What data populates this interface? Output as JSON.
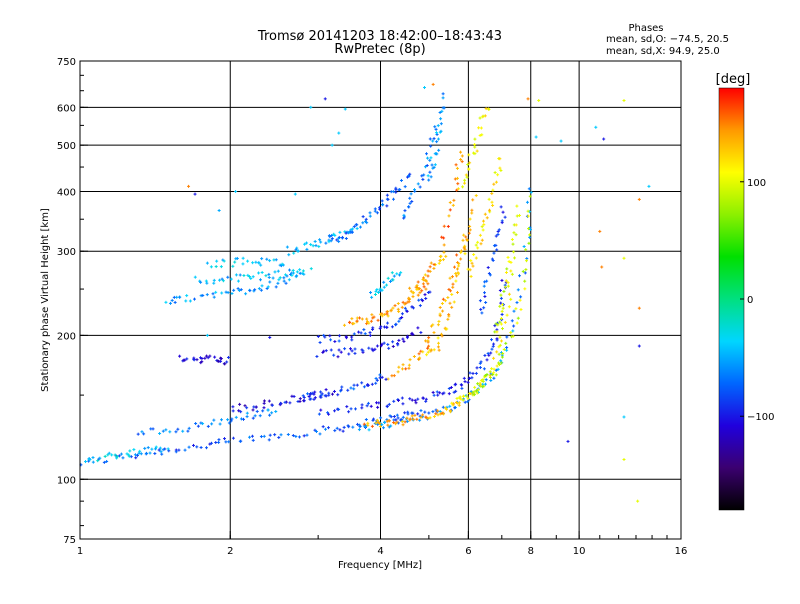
{
  "chart_data": {
    "type": "scatter",
    "title_line1": "Tromsø 20141203 18:42:00–18:43:43",
    "title_line2": "RwPretec (8p)",
    "xlabel": "Frequency [MHz]",
    "ylabel": "Stationary phase Virtual Height [km]",
    "x_scale": "log",
    "y_scale": "log",
    "xlim": [
      1,
      16
    ],
    "ylim": [
      75,
      750
    ],
    "x_ticks": [
      1,
      2,
      4,
      6,
      8,
      10,
      16
    ],
    "x_tick_labels": [
      "1",
      "2",
      "4",
      "6",
      "8",
      "10",
      "16"
    ],
    "y_ticks": [
      75,
      100,
      200,
      300,
      400,
      500,
      600,
      750
    ],
    "y_tick_labels": [
      "75",
      "100",
      "200",
      "300",
      "400",
      "500",
      "600",
      "750"
    ],
    "x_grid": [
      2,
      4,
      6,
      8,
      10
    ],
    "y_grid": [
      100,
      200,
      300,
      400,
      500,
      600
    ],
    "grid": true,
    "stats": {
      "title": "Phases",
      "line1": "mean, sd,O: −74.5, 20.5",
      "line2": "mean, sd,X:  94.9, 25.0"
    },
    "colorbar": {
      "label": "[deg]",
      "range": [
        -180,
        180
      ],
      "ticks": [
        -100,
        0,
        100
      ],
      "tick_labels": [
        "−100",
        "0",
        "100"
      ],
      "colormap": [
        "#000000",
        "#3b0070",
        "#2000dd",
        "#0066ff",
        "#00d6ff",
        "#00e080",
        "#00e000",
        "#8cf000",
        "#ffff00",
        "#ff9900",
        "#ff0000"
      ]
    },
    "traces": [
      {
        "x": [
          1.0,
          1.2,
          1.4,
          1.6,
          1.8,
          2.0,
          2.3,
          2.6,
          3.0,
          3.3,
          3.6,
          3.9,
          4.2,
          4.5,
          4.8
        ],
        "y": [
          108,
          111,
          114,
          116,
          118,
          120,
          122,
          124,
          126,
          128,
          130,
          132,
          134,
          136,
          138
        ],
        "phase": -80
      },
      {
        "x": [
          1.0,
          1.1,
          1.2,
          1.3,
          1.4,
          1.5
        ],
        "y": [
          109,
          111,
          113,
          114,
          115,
          118
        ],
        "phase": -40
      },
      {
        "x": [
          3.0,
          3.4,
          3.8,
          4.2,
          4.6,
          5.0,
          5.4,
          5.7,
          6.0,
          6.3,
          6.6,
          6.8,
          7.0,
          7.1
        ],
        "y": [
          138,
          140,
          142,
          144,
          146,
          149,
          152,
          156,
          162,
          170,
          182,
          200,
          235,
          270
        ],
        "phase": -95
      },
      {
        "x": [
          3.6,
          4.0,
          4.4,
          4.8,
          5.2,
          5.6,
          6.0,
          6.4,
          6.8,
          7.2,
          7.6,
          7.9,
          8.0
        ],
        "y": [
          128,
          130,
          132,
          135,
          138,
          142,
          148,
          156,
          168,
          190,
          240,
          330,
          420
        ],
        "phase": -60
      },
      {
        "x": [
          3.7,
          4.0,
          4.3,
          4.6,
          4.9,
          5.2,
          5.5,
          5.8
        ],
        "y": [
          130,
          131,
          132,
          133,
          135,
          137,
          140,
          145
        ],
        "phase": 140
      },
      {
        "x": [
          5.6,
          5.9,
          6.2,
          6.5,
          6.8,
          7.0,
          7.2,
          7.4
        ],
        "y": [
          145,
          148,
          152,
          160,
          175,
          200,
          240,
          300
        ],
        "phase": 105
      },
      {
        "x": [
          6.0,
          6.4,
          6.8,
          7.2,
          7.6,
          7.9,
          8.0
        ],
        "y": [
          150,
          158,
          170,
          190,
          230,
          300,
          400
        ],
        "phase": 90
      },
      {
        "x": [
          5.0,
          5.2,
          5.4,
          5.6,
          5.8,
          6.0,
          6.2
        ],
        "y": [
          180,
          190,
          210,
          240,
          280,
          330,
          400
        ],
        "phase": 130
      },
      {
        "x": [
          4.2,
          4.5,
          4.8,
          5.0,
          5.2,
          5.4,
          5.6,
          5.8,
          6.0
        ],
        "y": [
          165,
          172,
          182,
          195,
          215,
          240,
          270,
          300,
          330
        ],
        "phase": 140
      },
      {
        "x": [
          3.0,
          3.3,
          3.6,
          3.9,
          4.2,
          4.5,
          4.8,
          5.1
        ],
        "y": [
          196,
          198,
          200,
          205,
          212,
          222,
          235,
          250
        ],
        "phase": -90
      },
      {
        "x": [
          3.0,
          3.3,
          3.6,
          3.9,
          4.2,
          4.5,
          4.8
        ],
        "y": [
          182,
          184,
          186,
          188,
          192,
          198,
          206
        ],
        "phase": -100
      },
      {
        "x": [
          1.5,
          1.6,
          1.8,
          2.0,
          2.2,
          2.4,
          2.6,
          2.8
        ],
        "y": [
          235,
          238,
          242,
          246,
          250,
          255,
          262,
          268
        ],
        "phase": -55
      },
      {
        "x": [
          1.7,
          1.9,
          2.1,
          2.3,
          2.5,
          2.7,
          2.9
        ],
        "y": [
          260,
          262,
          264,
          266,
          268,
          270,
          272
        ],
        "phase": -45
      },
      {
        "x": [
          1.8,
          2.0,
          2.2,
          2.4,
          2.6
        ],
        "y": [
          282,
          284,
          286,
          285,
          284
        ],
        "phase": -40
      },
      {
        "x": [
          2.6,
          2.8,
          3.0,
          3.2,
          3.4,
          3.6
        ],
        "y": [
          300,
          306,
          312,
          318,
          325,
          332
        ],
        "phase": -50
      },
      {
        "x": [
          3.2,
          3.4,
          3.6,
          3.8,
          4.0,
          4.2,
          4.4,
          4.6
        ],
        "y": [
          315,
          325,
          340,
          355,
          370,
          390,
          410,
          440
        ],
        "phase": -75
      },
      {
        "x": [
          4.4,
          4.6,
          4.8,
          5.0,
          5.2
        ],
        "y": [
          350,
          380,
          420,
          480,
          560
        ],
        "phase": -65
      },
      {
        "x": [
          5.0,
          5.1,
          5.2,
          5.3,
          5.4
        ],
        "y": [
          420,
          460,
          510,
          570,
          640
        ],
        "phase": -55
      },
      {
        "x": [
          5.3,
          5.5,
          5.7,
          5.8
        ],
        "y": [
          300,
          360,
          430,
          500
        ],
        "phase": 150
      },
      {
        "x": [
          6.3,
          6.5,
          6.7,
          6.9,
          7.1
        ],
        "y": [
          220,
          250,
          290,
          330,
          380
        ],
        "phase": -85
      },
      {
        "x": [
          6.8,
          7.0,
          7.2,
          7.4,
          7.6
        ],
        "y": [
          200,
          230,
          270,
          320,
          380
        ],
        "phase": 95
      },
      {
        "x": [
          2.8,
          3.0,
          3.3,
          3.6,
          3.9,
          4.1
        ],
        "y": [
          148,
          150,
          153,
          156,
          160,
          164
        ],
        "phase": -85
      },
      {
        "x": [
          2.0,
          2.2,
          2.4,
          2.6,
          2.8,
          3.0,
          3.2
        ],
        "y": [
          140,
          142,
          144,
          146,
          148,
          150,
          152
        ],
        "phase": -105
      },
      {
        "x": [
          1.3,
          1.5,
          1.7,
          1.9,
          2.1,
          2.3,
          2.5
        ],
        "y": [
          125,
          127,
          129,
          131,
          134,
          137,
          140
        ],
        "phase": -65
      },
      {
        "x": [
          1.6,
          1.7,
          1.8,
          1.9,
          2.0
        ],
        "y": [
          178,
          178,
          179,
          178,
          177
        ],
        "phase": -110
      },
      {
        "x": [
          4.6,
          4.8,
          5.0,
          5.2,
          5.4
        ],
        "y": [
          248,
          258,
          270,
          285,
          300
        ],
        "phase": 135
      },
      {
        "x": [
          3.8,
          4.0,
          4.2,
          4.4
        ],
        "y": [
          240,
          250,
          262,
          275
        ],
        "phase": -40
      },
      {
        "x": [
          3.4,
          3.6,
          3.8,
          4.0,
          4.2,
          4.4,
          4.6,
          4.8,
          5.0
        ],
        "y": [
          212,
          214,
          216,
          220,
          224,
          230,
          238,
          248,
          260
        ],
        "phase": 140
      },
      {
        "x": [
          6.0,
          6.2,
          6.4,
          6.6,
          6.8,
          7.0
        ],
        "y": [
          270,
          300,
          330,
          370,
          420,
          480
        ],
        "phase": 115
      },
      {
        "x": [
          5.8,
          6.0,
          6.2,
          6.4,
          6.6
        ],
        "y": [
          400,
          450,
          500,
          560,
          610
        ],
        "phase": 110
      }
    ],
    "scatter_points": [
      {
        "x": 1.65,
        "y": 410,
        "phase": 150
      },
      {
        "x": 1.7,
        "y": 395,
        "phase": -100
      },
      {
        "x": 1.9,
        "y": 365,
        "phase": -50
      },
      {
        "x": 2.05,
        "y": 400,
        "phase": -40
      },
      {
        "x": 2.7,
        "y": 395,
        "phase": -40
      },
      {
        "x": 2.9,
        "y": 600,
        "phase": -40
      },
      {
        "x": 3.1,
        "y": 625,
        "phase": -100
      },
      {
        "x": 3.4,
        "y": 595,
        "phase": -40
      },
      {
        "x": 3.2,
        "y": 500,
        "phase": -40
      },
      {
        "x": 3.3,
        "y": 530,
        "phase": -40
      },
      {
        "x": 4.9,
        "y": 660,
        "phase": -40
      },
      {
        "x": 5.1,
        "y": 670,
        "phase": 150
      },
      {
        "x": 7.9,
        "y": 625,
        "phase": 150
      },
      {
        "x": 8.3,
        "y": 620,
        "phase": 100
      },
      {
        "x": 8.2,
        "y": 520,
        "phase": -40
      },
      {
        "x": 9.2,
        "y": 510,
        "phase": -40
      },
      {
        "x": 10.8,
        "y": 545,
        "phase": -40
      },
      {
        "x": 11.2,
        "y": 515,
        "phase": -100
      },
      {
        "x": 12.3,
        "y": 620,
        "phase": 100
      },
      {
        "x": 13.2,
        "y": 385,
        "phase": 150
      },
      {
        "x": 13.8,
        "y": 410,
        "phase": -40
      },
      {
        "x": 11.0,
        "y": 330,
        "phase": 150
      },
      {
        "x": 12.3,
        "y": 290,
        "phase": 100
      },
      {
        "x": 11.1,
        "y": 278,
        "phase": 150
      },
      {
        "x": 13.2,
        "y": 228,
        "phase": 150
      },
      {
        "x": 13.2,
        "y": 190,
        "phase": -100
      },
      {
        "x": 12.3,
        "y": 135,
        "phase": -40
      },
      {
        "x": 12.3,
        "y": 110,
        "phase": 100
      },
      {
        "x": 13.1,
        "y": 90,
        "phase": 100
      },
      {
        "x": 9.5,
        "y": 120,
        "phase": -100
      },
      {
        "x": 1.8,
        "y": 200,
        "phase": -40
      },
      {
        "x": 2.4,
        "y": 198,
        "phase": -100
      }
    ]
  }
}
